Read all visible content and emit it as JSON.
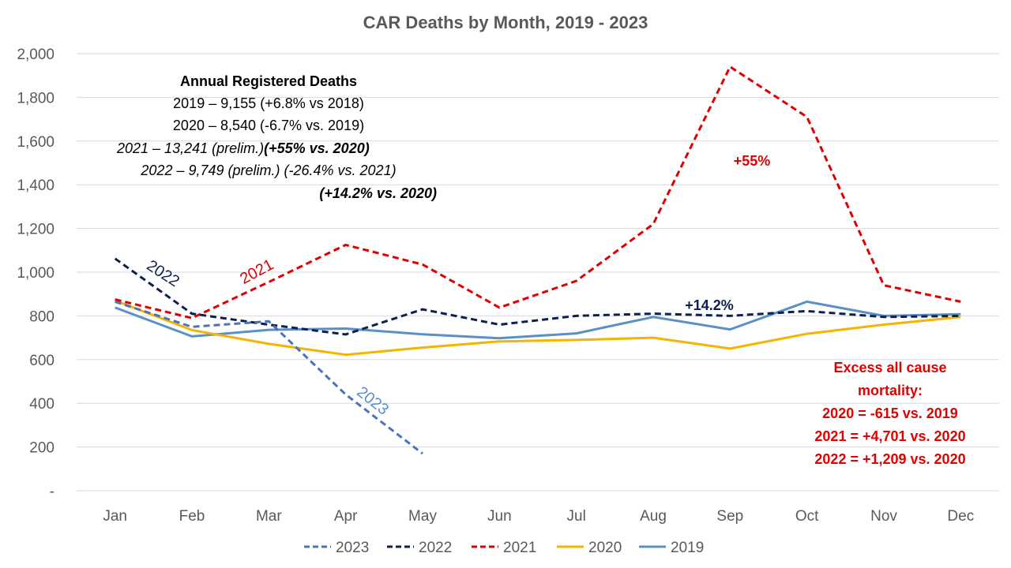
{
  "chart_data": {
    "type": "line",
    "title": "CAR Deaths by Month, 2019 - 2023",
    "categories": [
      "Jan",
      "Feb",
      "Mar",
      "Apr",
      "May",
      "Jun",
      "Jul",
      "Aug",
      "Sep",
      "Oct",
      "Nov",
      "Dec"
    ],
    "yticks": [
      "-",
      "200",
      "400",
      "600",
      "800",
      "1,000",
      "1,200",
      "1,400",
      "1,600",
      "1,800",
      "2,000"
    ],
    "ylim": [
      0,
      2000
    ],
    "grid": "horizontal",
    "legend_position": "bottom",
    "series": [
      {
        "name": "2023",
        "color": "#4a73b8",
        "dash": true,
        "values": [
          865,
          750,
          775,
          440,
          170,
          null,
          null,
          null,
          null,
          null,
          null,
          null
        ]
      },
      {
        "name": "2022",
        "color": "#0d1f4d",
        "dash": true,
        "values": [
          1062,
          810,
          760,
          715,
          830,
          760,
          800,
          810,
          800,
          822,
          795,
          800
        ]
      },
      {
        "name": "2021",
        "color": "#e00000",
        "dash": true,
        "values": [
          875,
          790,
          955,
          1125,
          1035,
          838,
          960,
          1220,
          1940,
          1710,
          940,
          865
        ]
      },
      {
        "name": "2020",
        "color": "#f4b400",
        "dash": false,
        "values": [
          870,
          735,
          672,
          622,
          655,
          683,
          690,
          700,
          650,
          718,
          760,
          795
        ]
      },
      {
        "name": "2019",
        "color": "#5b8fc7",
        "dash": false,
        "values": [
          838,
          706,
          736,
          742,
          716,
          698,
          720,
          795,
          738,
          865,
          800,
          808
        ]
      }
    ],
    "line_labels": [
      {
        "text": "2022",
        "series": "2022"
      },
      {
        "text": "2021",
        "series": "2021"
      },
      {
        "text": "2023",
        "series": "2023"
      },
      {
        "text": "+14.2%",
        "series": "2022"
      },
      {
        "text": "+55%",
        "series": "2021"
      }
    ],
    "annotations": {
      "annual_title": "Annual Registered Deaths",
      "line_2019": "2019 – 9,155 (+6.8% vs 2018)",
      "line_2020": "2020 – 8,540 (-6.7% vs. 2019)",
      "line_2021_a": "2021 – 13,241 (prelim.)",
      "line_2021_b": "(+55% vs. 2020)",
      "line_2022": "2022 – 9,749 (prelim.) (-26.4% vs. 2021)",
      "line_2022_b": "(+14.2% vs. 2020)",
      "excess_lines": [
        "Excess all cause",
        "mortality:",
        "2020 = -615 vs. 2019",
        "2021 = +4,701 vs. 2020",
        "2022 = +1,209 vs. 2020"
      ]
    }
  }
}
